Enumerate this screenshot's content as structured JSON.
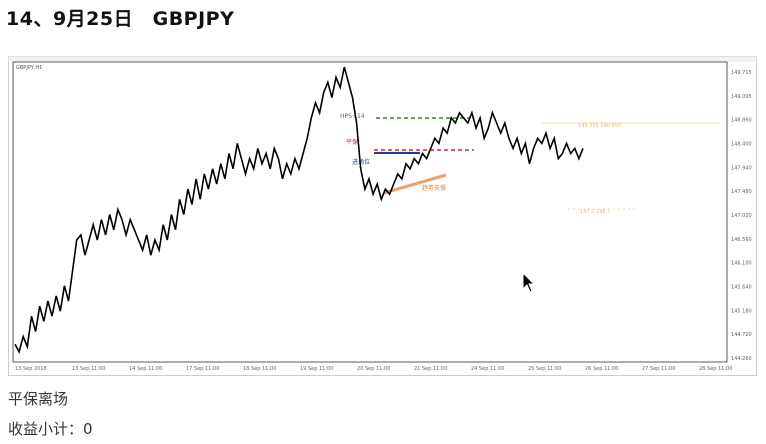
{
  "header": {
    "title": "14、9月25日　GBPJPY"
  },
  "chart_data": {
    "type": "line",
    "symbol": "GBPJPY,H1",
    "info_line": "",
    "x_tick_labels": [
      "13 Sep 2018",
      "13 Sep 11:00",
      "14 Sep 11:00",
      "17 Sep 11:00",
      "18 Sep 11:00",
      "19 Sep 11:00",
      "20 Sep 11:00",
      "21 Sep 11:00",
      "24 Sep 11:00",
      "25 Sep 11:00",
      "26 Sep 11:00",
      "27 Sep 11:00",
      "28 Sep 11:00"
    ],
    "y_tick_labels": [
      "149.715",
      "149.095",
      "148.860",
      "148.400",
      "147.940",
      "147.480",
      "147.020",
      "146.560",
      "146.100",
      "145.640",
      "145.180",
      "144.720",
      "144.260"
    ],
    "ylim": [
      144.1,
      150.0
    ],
    "series": [
      {
        "values": [
          144.45,
          144.3,
          144.6,
          144.4,
          145.0,
          144.7,
          145.2,
          144.9,
          145.3,
          145.0,
          145.4,
          145.1,
          145.6,
          145.3,
          145.9,
          146.5,
          146.6,
          146.2,
          146.5,
          146.8,
          146.5,
          146.9,
          146.6,
          147.0,
          146.7,
          147.1,
          146.9,
          146.6,
          146.9,
          146.7,
          146.5,
          146.3,
          146.6,
          146.2,
          146.5,
          146.3,
          146.8,
          146.5,
          147.0,
          146.7,
          147.3,
          147.0,
          147.5,
          147.2,
          147.7,
          147.3,
          147.8,
          147.5,
          147.9,
          147.6,
          148.0,
          147.7,
          148.2,
          147.9,
          148.4,
          148.1,
          147.8,
          148.1,
          147.9,
          148.3,
          148.0,
          148.2,
          147.9,
          148.3,
          148.1,
          147.7,
          148.0,
          147.8,
          148.1,
          147.9,
          148.2,
          148.5,
          148.9,
          149.2,
          149.0,
          149.4,
          149.6,
          149.3,
          149.7,
          149.5,
          149.9,
          149.6,
          149.3,
          148.8,
          147.9,
          147.5,
          147.7,
          147.4,
          147.6,
          147.3,
          147.5,
          147.4,
          147.6,
          147.8,
          147.7,
          148.0,
          147.9,
          148.1,
          148.0,
          148.2,
          148.1,
          148.3,
          148.5,
          148.4,
          148.7,
          148.6,
          148.9,
          148.8,
          149.0,
          148.9,
          148.8,
          149.0,
          148.7,
          148.9,
          148.5,
          148.7,
          149.0,
          148.8,
          148.6,
          148.8,
          148.5,
          148.3,
          148.5,
          148.2,
          148.4,
          148.0,
          148.3,
          148.5,
          148.4,
          148.6,
          148.3,
          148.5,
          148.1,
          148.2,
          148.4,
          148.2,
          148.3,
          148.1,
          148.3
        ],
        "color": "#000000"
      }
    ],
    "annotations": [
      {
        "label": "HPS+14",
        "color": "#666666"
      },
      {
        "label": "平保",
        "color": "#c0392b"
      },
      {
        "label": "进场位",
        "color": "#1f3a93"
      },
      {
        "label": "趋势支撑",
        "color": "#e67e22"
      }
    ],
    "marker_labels": [
      "148.355 146.950",
      "147.5 146.7"
    ],
    "grid": false,
    "colors": {
      "green_line": "#1e8c2e",
      "red_line": "#d0223a",
      "blue_line": "#1f3a93",
      "orange_line": "#f0a070"
    }
  },
  "notes": {
    "line1": "平保离场",
    "line2": "收益小计：0"
  }
}
